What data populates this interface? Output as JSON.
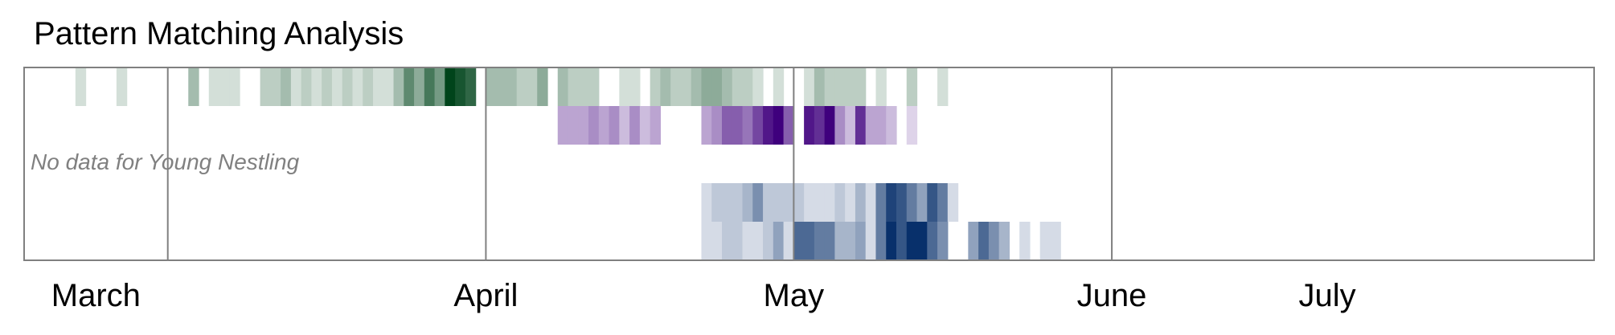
{
  "chart_data": {
    "type": "heatmap",
    "title": "Pattern Matching Analysis",
    "x_axis": "date",
    "x_range": [
      "2023-03-01",
      "2023-07-31"
    ],
    "month_ticks": [
      {
        "label": "March",
        "center": "2023-03-08"
      },
      {
        "label": "April",
        "center": "2023-04-15"
      },
      {
        "label": "May",
        "center": "2023-05-15"
      },
      {
        "label": "June",
        "center": "2023-06-15"
      },
      {
        "label": "July",
        "center": "2023-07-06"
      }
    ],
    "month_boundaries": [
      "2023-03-15",
      "2023-04-15",
      "2023-05-15",
      "2023-06-15"
    ],
    "value_range": [
      0,
      10
    ],
    "annotation": "No data for Young Nestling",
    "rows": [
      {
        "lane": 0,
        "color": "#00441b",
        "cells": [
          {
            "date": "2023-03-06",
            "value": 1
          },
          {
            "date": "2023-03-10",
            "value": 1
          },
          {
            "date": "2023-03-17",
            "value": 3
          },
          {
            "date": "2023-03-19",
            "value": 1
          },
          {
            "date": "2023-03-20",
            "value": 1
          },
          {
            "date": "2023-03-21",
            "value": 1
          },
          {
            "date": "2023-03-24",
            "value": 2
          },
          {
            "date": "2023-03-25",
            "value": 2
          },
          {
            "date": "2023-03-26",
            "value": 3
          },
          {
            "date": "2023-03-27",
            "value": 1
          },
          {
            "date": "2023-03-28",
            "value": 2
          },
          {
            "date": "2023-03-29",
            "value": 1
          },
          {
            "date": "2023-03-30",
            "value": 2
          },
          {
            "date": "2023-03-31",
            "value": 1
          },
          {
            "date": "2023-04-01",
            "value": 2
          },
          {
            "date": "2023-04-02",
            "value": 1
          },
          {
            "date": "2023-04-03",
            "value": 2
          },
          {
            "date": "2023-04-04",
            "value": 1
          },
          {
            "date": "2023-04-05",
            "value": 1
          },
          {
            "date": "2023-04-06",
            "value": 3
          },
          {
            "date": "2023-04-07",
            "value": 6
          },
          {
            "date": "2023-04-08",
            "value": 4
          },
          {
            "date": "2023-04-09",
            "value": 7
          },
          {
            "date": "2023-04-10",
            "value": 5
          },
          {
            "date": "2023-04-11",
            "value": 10
          },
          {
            "date": "2023-04-12",
            "value": 9
          },
          {
            "date": "2023-04-13",
            "value": 8
          },
          {
            "date": "2023-04-15",
            "value": 3
          },
          {
            "date": "2023-04-16",
            "value": 3
          },
          {
            "date": "2023-04-17",
            "value": 3
          },
          {
            "date": "2023-04-18",
            "value": 2
          },
          {
            "date": "2023-04-19",
            "value": 2
          },
          {
            "date": "2023-04-20",
            "value": 4
          },
          {
            "date": "2023-04-22",
            "value": 3
          },
          {
            "date": "2023-04-23",
            "value": 2
          },
          {
            "date": "2023-04-24",
            "value": 2
          },
          {
            "date": "2023-04-25",
            "value": 2
          },
          {
            "date": "2023-04-28",
            "value": 1
          },
          {
            "date": "2023-04-29",
            "value": 1
          },
          {
            "date": "2023-05-01",
            "value": 2
          },
          {
            "date": "2023-05-02",
            "value": 3
          },
          {
            "date": "2023-05-03",
            "value": 2
          },
          {
            "date": "2023-05-04",
            "value": 2
          },
          {
            "date": "2023-05-05",
            "value": 3
          },
          {
            "date": "2023-05-06",
            "value": 4
          },
          {
            "date": "2023-05-07",
            "value": 4
          },
          {
            "date": "2023-05-08",
            "value": 3
          },
          {
            "date": "2023-05-09",
            "value": 2
          },
          {
            "date": "2023-05-10",
            "value": 2
          },
          {
            "date": "2023-05-11",
            "value": 1
          },
          {
            "date": "2023-05-13",
            "value": 1
          },
          {
            "date": "2023-05-16",
            "value": 1
          },
          {
            "date": "2023-05-17",
            "value": 3
          },
          {
            "date": "2023-05-18",
            "value": 2
          },
          {
            "date": "2023-05-19",
            "value": 2
          },
          {
            "date": "2023-05-20",
            "value": 2
          },
          {
            "date": "2023-05-21",
            "value": 2
          },
          {
            "date": "2023-05-23",
            "value": 1
          },
          {
            "date": "2023-05-26",
            "value": 2
          },
          {
            "date": "2023-05-29",
            "value": 1
          }
        ]
      },
      {
        "lane": 1,
        "color": "#3f007d",
        "cells": [
          {
            "date": "2023-04-22",
            "value": 3
          },
          {
            "date": "2023-04-23",
            "value": 3
          },
          {
            "date": "2023-04-24",
            "value": 3
          },
          {
            "date": "2023-04-25",
            "value": 4
          },
          {
            "date": "2023-04-26",
            "value": 3
          },
          {
            "date": "2023-04-27",
            "value": 4
          },
          {
            "date": "2023-04-28",
            "value": 2
          },
          {
            "date": "2023-04-29",
            "value": 4
          },
          {
            "date": "2023-04-30",
            "value": 2
          },
          {
            "date": "2023-05-01",
            "value": 3
          },
          {
            "date": "2023-05-06",
            "value": 3
          },
          {
            "date": "2023-05-07",
            "value": 4
          },
          {
            "date": "2023-05-08",
            "value": 6
          },
          {
            "date": "2023-05-09",
            "value": 6
          },
          {
            "date": "2023-05-10",
            "value": 5
          },
          {
            "date": "2023-05-11",
            "value": 7
          },
          {
            "date": "2023-05-12",
            "value": 9
          },
          {
            "date": "2023-05-13",
            "value": 10
          },
          {
            "date": "2023-05-14",
            "value": 6
          },
          {
            "date": "2023-05-16",
            "value": 9
          },
          {
            "date": "2023-05-17",
            "value": 8
          },
          {
            "date": "2023-05-18",
            "value": 10
          },
          {
            "date": "2023-05-19",
            "value": 4
          },
          {
            "date": "2023-05-20",
            "value": 2
          },
          {
            "date": "2023-05-21",
            "value": 8
          },
          {
            "date": "2023-05-22",
            "value": 3
          },
          {
            "date": "2023-05-23",
            "value": 3
          },
          {
            "date": "2023-05-24",
            "value": 2
          },
          {
            "date": "2023-05-26",
            "value": 1
          }
        ]
      },
      {
        "lane": 2,
        "color": "#08306b",
        "cells": []
      },
      {
        "lane": 3,
        "color": "#08306b",
        "cells": [
          {
            "date": "2023-05-06",
            "value": 1
          },
          {
            "date": "2023-05-07",
            "value": 2
          },
          {
            "date": "2023-05-08",
            "value": 2
          },
          {
            "date": "2023-05-09",
            "value": 2
          },
          {
            "date": "2023-05-10",
            "value": 3
          },
          {
            "date": "2023-05-11",
            "value": 5
          },
          {
            "date": "2023-05-12",
            "value": 2
          },
          {
            "date": "2023-05-13",
            "value": 2
          },
          {
            "date": "2023-05-14",
            "value": 2
          },
          {
            "date": "2023-05-15",
            "value": 2
          },
          {
            "date": "2023-05-16",
            "value": 1
          },
          {
            "date": "2023-05-17",
            "value": 1
          },
          {
            "date": "2023-05-18",
            "value": 1
          },
          {
            "date": "2023-05-19",
            "value": 2
          },
          {
            "date": "2023-05-20",
            "value": 1
          },
          {
            "date": "2023-05-21",
            "value": 3
          },
          {
            "date": "2023-05-22",
            "value": 1
          },
          {
            "date": "2023-05-23",
            "value": 6
          },
          {
            "date": "2023-05-24",
            "value": 9
          },
          {
            "date": "2023-05-25",
            "value": 8
          },
          {
            "date": "2023-05-26",
            "value": 6
          },
          {
            "date": "2023-05-27",
            "value": 4
          },
          {
            "date": "2023-05-28",
            "value": 8
          },
          {
            "date": "2023-05-29",
            "value": 6
          },
          {
            "date": "2023-05-30",
            "value": 1
          }
        ]
      },
      {
        "lane": 4,
        "color": "#08306b",
        "cells": [
          {
            "date": "2023-05-06",
            "value": 1
          },
          {
            "date": "2023-05-07",
            "value": 1
          },
          {
            "date": "2023-05-08",
            "value": 2
          },
          {
            "date": "2023-05-09",
            "value": 2
          },
          {
            "date": "2023-05-10",
            "value": 1
          },
          {
            "date": "2023-05-11",
            "value": 1
          },
          {
            "date": "2023-05-12",
            "value": 2
          },
          {
            "date": "2023-05-13",
            "value": 4
          },
          {
            "date": "2023-05-14",
            "value": 1
          },
          {
            "date": "2023-05-15",
            "value": 7
          },
          {
            "date": "2023-05-16",
            "value": 7
          },
          {
            "date": "2023-05-17",
            "value": 6
          },
          {
            "date": "2023-05-18",
            "value": 6
          },
          {
            "date": "2023-05-19",
            "value": 3
          },
          {
            "date": "2023-05-20",
            "value": 3
          },
          {
            "date": "2023-05-21",
            "value": 4
          },
          {
            "date": "2023-05-22",
            "value": 1
          },
          {
            "date": "2023-05-23",
            "value": 6
          },
          {
            "date": "2023-05-24",
            "value": 10
          },
          {
            "date": "2023-05-25",
            "value": 8
          },
          {
            "date": "2023-05-26",
            "value": 10
          },
          {
            "date": "2023-05-27",
            "value": 10
          },
          {
            "date": "2023-05-28",
            "value": 7
          },
          {
            "date": "2023-05-29",
            "value": 5
          },
          {
            "date": "2023-06-01",
            "value": 4
          },
          {
            "date": "2023-06-02",
            "value": 7
          },
          {
            "date": "2023-06-03",
            "value": 5
          },
          {
            "date": "2023-06-04",
            "value": 3
          },
          {
            "date": "2023-06-06",
            "value": 1
          },
          {
            "date": "2023-06-08",
            "value": 1
          },
          {
            "date": "2023-06-09",
            "value": 1
          }
        ]
      }
    ]
  }
}
